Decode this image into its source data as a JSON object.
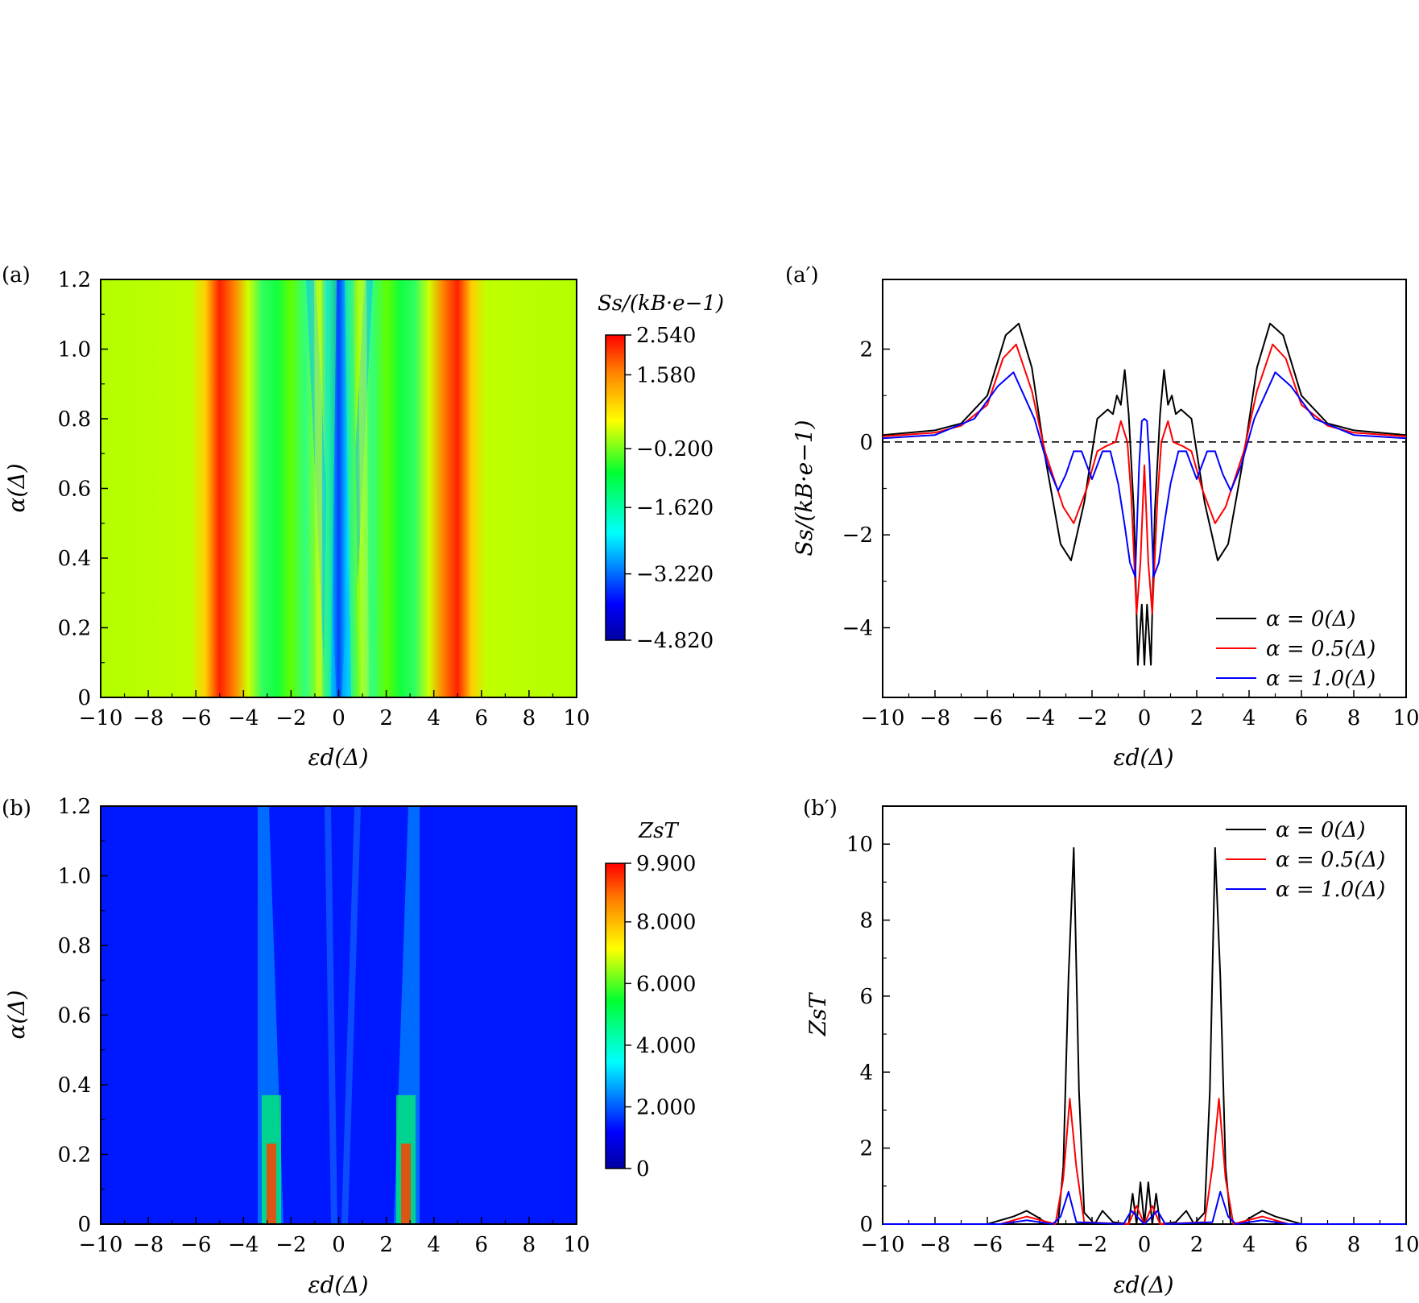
{
  "chart_data": [
    {
      "panel": "(a)",
      "type": "heatmap",
      "xlabel": "εd(Δ)",
      "ylabel": "α(Δ)",
      "xlim": [
        -10,
        10
      ],
      "ylim": [
        0,
        1.2
      ],
      "xticks": [
        "−10",
        "−8",
        "−6",
        "−4",
        "−2",
        "0",
        "2",
        "4",
        "6",
        "8",
        "10"
      ],
      "yticks": [
        "0",
        "0.2",
        "0.4",
        "0.6",
        "0.8",
        "1.0",
        "1.2"
      ],
      "colorbar_label": "Ss/(kB·e−1)",
      "colorbar_ticks": [
        "2.540",
        "1.580",
        "−0.200",
        "−1.620",
        "−3.220",
        "−4.820"
      ],
      "colorbar_range": [
        -4.82,
        2.54
      ],
      "colormap": "jet"
    },
    {
      "panel": "(a′)",
      "type": "line",
      "xlabel": "εd(Δ)",
      "ylabel": "Ss/(kB·e−1)",
      "xlim": [
        -10,
        10
      ],
      "ylim": [
        -5.5,
        3.5
      ],
      "xticks": [
        "−10",
        "−8",
        "−6",
        "−4",
        "−2",
        "0",
        "2",
        "4",
        "6",
        "8",
        "10"
      ],
      "yticks": [
        "−4",
        "−2",
        "0",
        "2"
      ],
      "legend_position": "bottom-right",
      "reference_line": {
        "y": 0,
        "style": "dashed"
      },
      "series": [
        {
          "name": "α = 0(Δ)",
          "color": "#000000",
          "points": [
            [
              0,
              -4.8
            ],
            [
              0.1,
              -3.5
            ],
            [
              0.25,
              -4.8
            ],
            [
              0.4,
              -1.5
            ],
            [
              0.6,
              0.6
            ],
            [
              0.75,
              1.55
            ],
            [
              0.9,
              0.8
            ],
            [
              1.05,
              1.0
            ],
            [
              1.2,
              0.6
            ],
            [
              1.4,
              0.7
            ],
            [
              1.8,
              0.5
            ],
            [
              2.3,
              -1.3
            ],
            [
              2.8,
              -2.55
            ],
            [
              3.2,
              -2.2
            ],
            [
              3.8,
              -0.3
            ],
            [
              4.3,
              1.6
            ],
            [
              4.8,
              2.55
            ],
            [
              5.3,
              2.3
            ],
            [
              6,
              1.0
            ],
            [
              7,
              0.4
            ],
            [
              8,
              0.25
            ],
            [
              10,
              0.15
            ]
          ]
        },
        {
          "name": "α = 0.5(Δ)",
          "color": "#ff0000",
          "points": [
            [
              0,
              -0.5
            ],
            [
              0.15,
              -2.6
            ],
            [
              0.3,
              -3.7
            ],
            [
              0.5,
              -1.2
            ],
            [
              0.65,
              0
            ],
            [
              0.9,
              0.45
            ],
            [
              1.1,
              0
            ],
            [
              1.5,
              -0.1
            ],
            [
              1.8,
              -0.2
            ],
            [
              2.2,
              -1.0
            ],
            [
              2.7,
              -1.75
            ],
            [
              3.1,
              -1.4
            ],
            [
              3.8,
              -0.2
            ],
            [
              4.3,
              1.1
            ],
            [
              4.9,
              2.1
            ],
            [
              5.4,
              1.8
            ],
            [
              6,
              0.8
            ],
            [
              7,
              0.35
            ],
            [
              8,
              0.2
            ],
            [
              10,
              0.12
            ]
          ]
        },
        {
          "name": "α = 1.0(Δ)",
          "color": "#0000ff",
          "points": [
            [
              0,
              0.5
            ],
            [
              0.1,
              0.45
            ],
            [
              0.2,
              -0.5
            ],
            [
              0.35,
              -2.9
            ],
            [
              0.55,
              -2.6
            ],
            [
              0.75,
              -1.8
            ],
            [
              1.0,
              -0.9
            ],
            [
              1.3,
              -0.2
            ],
            [
              1.6,
              -0.2
            ],
            [
              2.0,
              -0.8
            ],
            [
              2.4,
              -0.2
            ],
            [
              2.7,
              -0.2
            ],
            [
              3.0,
              -0.7
            ],
            [
              3.3,
              -1.05
            ],
            [
              3.7,
              -0.5
            ],
            [
              4.2,
              0.5
            ],
            [
              5.0,
              1.5
            ],
            [
              5.6,
              1.2
            ],
            [
              6.5,
              0.5
            ],
            [
              8,
              0.15
            ],
            [
              10,
              0.08
            ]
          ]
        }
      ]
    },
    {
      "panel": "(b)",
      "type": "heatmap",
      "xlabel": "εd(Δ)",
      "ylabel": "α(Δ)",
      "xlim": [
        -10,
        10
      ],
      "ylim": [
        0,
        1.2
      ],
      "xticks": [
        "−10",
        "−8",
        "−6",
        "−4",
        "−2",
        "0",
        "2",
        "4",
        "6",
        "8",
        "10"
      ],
      "yticks": [
        "0",
        "0.2",
        "0.4",
        "0.6",
        "0.8",
        "1.0",
        "1.2"
      ],
      "colorbar_label": "ZsT",
      "colorbar_ticks": [
        "9.900",
        "8.000",
        "6.000",
        "4.000",
        "2.000",
        "0"
      ],
      "colorbar_range": [
        0,
        9.9
      ],
      "colormap": "jet"
    },
    {
      "panel": "(b′)",
      "type": "line",
      "xlabel": "εd(Δ)",
      "ylabel": "ZsT",
      "xlim": [
        -10,
        10
      ],
      "ylim": [
        0,
        11
      ],
      "xticks": [
        "−10",
        "−8",
        "−6",
        "−4",
        "−2",
        "0",
        "2",
        "4",
        "6",
        "8",
        "10"
      ],
      "yticks": [
        "0",
        "2",
        "4",
        "6",
        "8",
        "10"
      ],
      "legend_position": "top-right",
      "series": [
        {
          "name": "α = 0(Δ)",
          "color": "#000000",
          "points": [
            [
              0,
              0
            ],
            [
              0.15,
              1.1
            ],
            [
              0.3,
              0
            ],
            [
              0.45,
              0.8
            ],
            [
              0.6,
              0
            ],
            [
              1.2,
              0.05
            ],
            [
              1.6,
              0.35
            ],
            [
              1.9,
              0
            ],
            [
              2.3,
              0.3
            ],
            [
              2.5,
              3.5
            ],
            [
              2.7,
              9.9
            ],
            [
              2.9,
              6.5
            ],
            [
              3.1,
              1.5
            ],
            [
              3.3,
              0
            ],
            [
              3.7,
              0
            ],
            [
              4.0,
              0.15
            ],
            [
              4.5,
              0.35
            ],
            [
              5.0,
              0.2
            ],
            [
              6.0,
              0
            ],
            [
              10,
              0
            ]
          ]
        },
        {
          "name": "α = 0.5(Δ)",
          "color": "#ff0000",
          "points": [
            [
              0,
              0
            ],
            [
              0.3,
              0.48
            ],
            [
              0.6,
              0
            ],
            [
              2.3,
              0.05
            ],
            [
              2.6,
              1.5
            ],
            [
              2.85,
              3.3
            ],
            [
              3.1,
              1.2
            ],
            [
              3.4,
              0
            ],
            [
              4.5,
              0.2
            ],
            [
              5.5,
              0
            ],
            [
              10,
              0
            ]
          ]
        },
        {
          "name": "α = 1.0(Δ)",
          "color": "#0000ff",
          "points": [
            [
              0,
              0
            ],
            [
              0.5,
              0.35
            ],
            [
              0.8,
              0
            ],
            [
              2.6,
              0.05
            ],
            [
              2.9,
              0.85
            ],
            [
              3.2,
              0.2
            ],
            [
              3.5,
              0
            ],
            [
              4.5,
              0.1
            ],
            [
              5.5,
              0
            ],
            [
              10,
              0
            ]
          ]
        }
      ]
    }
  ]
}
